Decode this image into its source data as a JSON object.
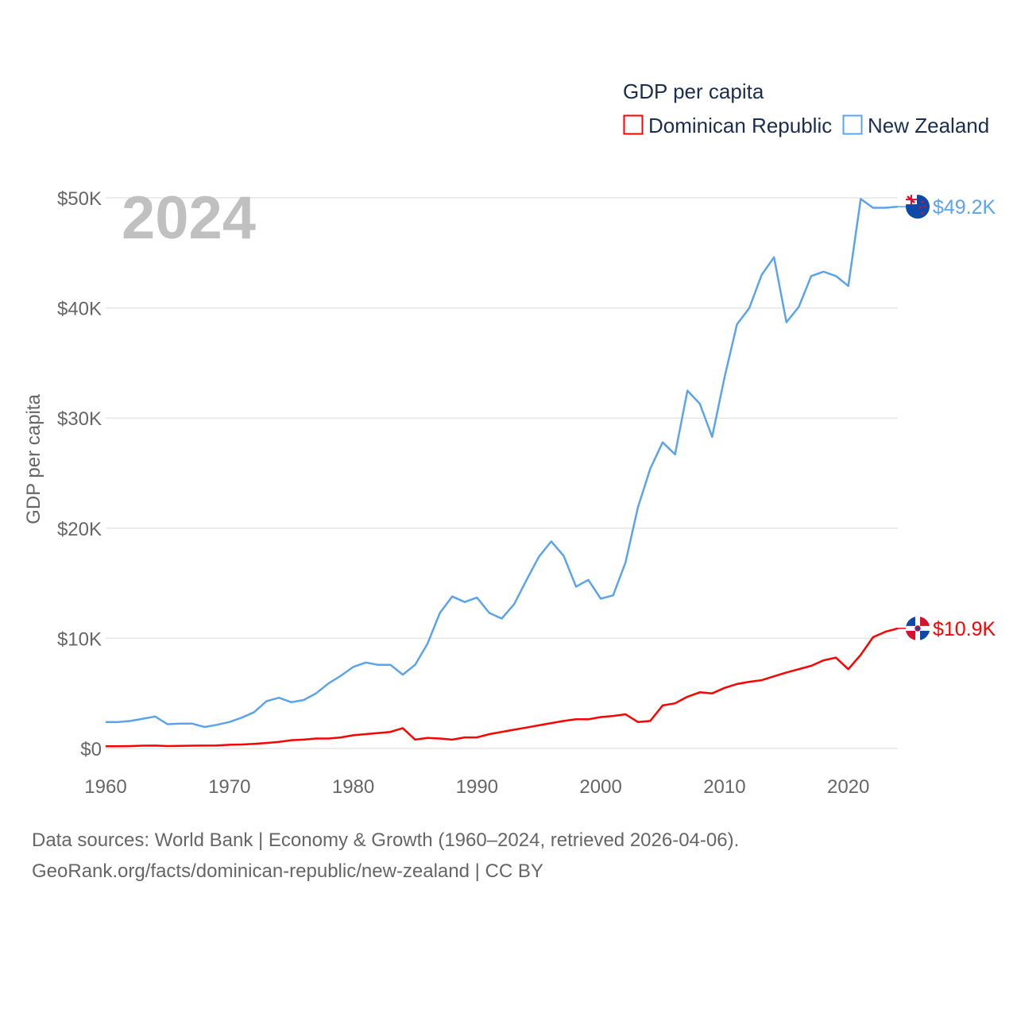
{
  "chart_data": {
    "type": "line",
    "title": "GDP per capita",
    "ylabel": "GDP per capita",
    "xlabel": "",
    "year_label": "2024",
    "xlim": [
      1960,
      2024
    ],
    "ylim": [
      0,
      50
    ],
    "x_ticks": [
      "1960",
      "1970",
      "1980",
      "1990",
      "2000",
      "2010",
      "2020"
    ],
    "y_ticks": [
      {
        "v": 0,
        "label": "$0"
      },
      {
        "v": 10,
        "label": "$10K"
      },
      {
        "v": 20,
        "label": "$20K"
      },
      {
        "v": 30,
        "label": "$30K"
      },
      {
        "v": 40,
        "label": "$40K"
      },
      {
        "v": 50,
        "label": "$50K"
      }
    ],
    "grid": true,
    "legend_position": "top-right",
    "x_start": 1960,
    "series": [
      {
        "name": "Dominican Republic",
        "color": "#ff0000",
        "end_label": "$10.9K",
        "flag": "dominican-republic-flag-icon",
        "values": [
          0.2,
          0.2,
          0.22,
          0.25,
          0.26,
          0.22,
          0.24,
          0.25,
          0.26,
          0.27,
          0.33,
          0.36,
          0.42,
          0.5,
          0.6,
          0.75,
          0.8,
          0.9,
          0.9,
          1.0,
          1.2,
          1.3,
          1.4,
          1.5,
          1.85,
          0.8,
          0.95,
          0.9,
          0.8,
          1.0,
          1.0,
          1.3,
          1.5,
          1.7,
          1.9,
          2.1,
          2.3,
          2.5,
          2.65,
          2.65,
          2.85,
          2.95,
          3.1,
          2.4,
          2.5,
          3.9,
          4.1,
          4.7,
          5.1,
          5.0,
          5.5,
          5.85,
          6.05,
          6.2,
          6.55,
          6.9,
          7.2,
          7.5,
          8.0,
          8.25,
          7.2,
          8.5,
          10.1,
          10.6,
          10.9
        ]
      },
      {
        "name": "New Zealand",
        "color": "#5ba4ec",
        "end_label": "$49.2K",
        "flag": "new-zealand-flag-icon",
        "values": [
          2.4,
          2.4,
          2.5,
          2.7,
          2.9,
          2.2,
          2.25,
          2.25,
          1.95,
          2.15,
          2.4,
          2.8,
          3.3,
          4.3,
          4.6,
          4.2,
          4.4,
          5.0,
          5.9,
          6.6,
          7.4,
          7.8,
          7.6,
          7.6,
          6.7,
          7.6,
          9.5,
          12.3,
          13.8,
          13.3,
          13.7,
          12.3,
          11.8,
          13.1,
          15.3,
          17.4,
          18.8,
          17.5,
          14.7,
          15.3,
          13.6,
          13.9,
          16.9,
          21.9,
          25.4,
          27.8,
          26.7,
          32.5,
          31.3,
          28.3,
          33.7,
          38.5,
          40.0,
          43.0,
          44.6,
          38.7,
          40.1,
          42.9,
          43.3,
          42.9,
          42.0,
          49.9,
          49.1,
          49.1,
          49.2
        ]
      }
    ]
  },
  "footer": {
    "line1": "Data sources: World Bank | Economy & Growth (1960–2024, retrieved 2026-04-06).",
    "line2": "GeoRank.org/facts/dominican-republic/new-zealand | CC BY"
  }
}
